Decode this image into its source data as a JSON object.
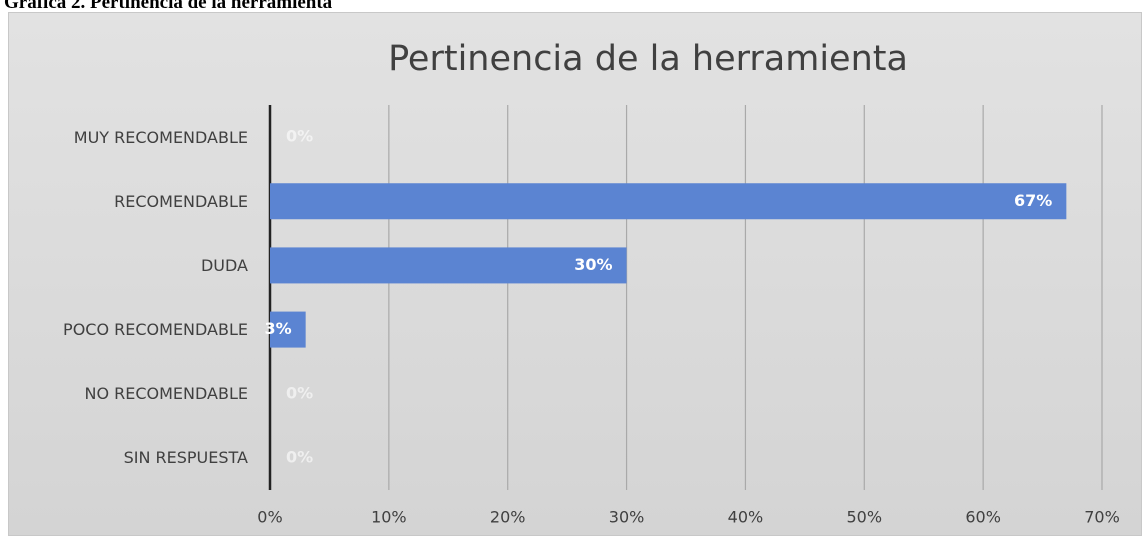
{
  "caption": "Gráfica 2. Pertinencia de la herramienta",
  "chart_data": {
    "type": "bar",
    "orientation": "horizontal",
    "title": "Pertinencia de la herramienta",
    "categories": [
      "MUY RECOMENDABLE",
      "RECOMENDABLE",
      "DUDA",
      "POCO RECOMENDABLE",
      "NO RECOMENDABLE",
      "SIN RESPUESTA"
    ],
    "values": [
      0,
      67,
      30,
      3,
      0,
      0
    ],
    "value_labels": [
      "0%",
      "67%",
      "30%",
      "3%",
      "0%",
      "0%"
    ],
    "color": "#5b84d2",
    "xlim": [
      0,
      70
    ],
    "xticks": [
      {
        "value": 0,
        "label": "0%"
      },
      {
        "value": 10,
        "label": "10%"
      },
      {
        "value": 20,
        "label": "20%"
      },
      {
        "value": 30,
        "label": "30%"
      },
      {
        "value": 40,
        "label": "40%"
      },
      {
        "value": 50,
        "label": "50%"
      },
      {
        "value": 60,
        "label": "60%"
      },
      {
        "value": 70,
        "label": "70%"
      }
    ],
    "grid": true
  }
}
